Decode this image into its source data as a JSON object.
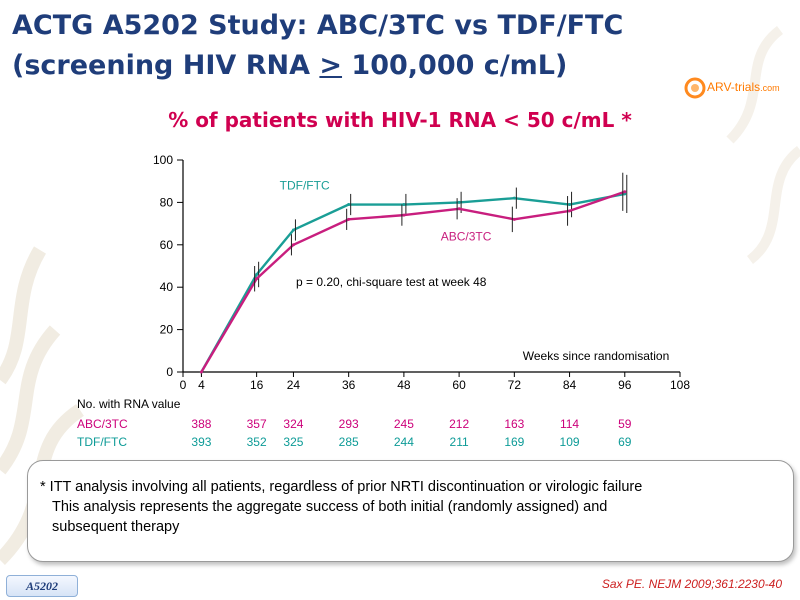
{
  "header": {
    "title_line1": "ACTG A5202 Study: ABC/3TC vs TDF/FTC",
    "title_line2_prefix": "(screening HIV RNA ",
    "title_line2_symbol": ">",
    "title_line2_suffix": " 100,000 c/mL)",
    "logo_main": "ARV-trials",
    "logo_tld": ".com"
  },
  "chart_data": {
    "type": "line",
    "title": "% of patients with HIV-1 RNA < 50 c/mL *",
    "xlabel": "Weeks since randomisation",
    "ylabel": "",
    "xlim": [
      0,
      108
    ],
    "ylim": [
      0,
      100
    ],
    "x_ticks": [
      0,
      4,
      16,
      24,
      36,
      48,
      60,
      72,
      84,
      96,
      108
    ],
    "y_ticks": [
      0,
      20,
      40,
      60,
      80,
      100
    ],
    "grid": false,
    "annotation": "p = 0.20, chi-square test at week 48",
    "series": [
      {
        "name": "TDF/FTC",
        "color": "#1a9e96",
        "x": [
          4,
          16,
          24,
          36,
          48,
          60,
          72,
          84,
          96
        ],
        "y": [
          0,
          46,
          67,
          79,
          79,
          80,
          82,
          79,
          84
        ],
        "error": [
          0,
          6,
          5,
          5,
          5,
          5,
          5,
          6,
          9
        ]
      },
      {
        "name": "ABC/3TC",
        "color": "#c81e7e",
        "x": [
          4,
          16,
          24,
          36,
          48,
          60,
          72,
          84,
          96
        ],
        "y": [
          0,
          44,
          60,
          72,
          74,
          77,
          72,
          76,
          85
        ],
        "error": [
          0,
          6,
          5,
          5,
          5,
          5,
          6,
          7,
          9
        ]
      }
    ]
  },
  "table": {
    "header": "No. with RNA value",
    "rows": [
      {
        "label": "ABC/3TC",
        "values": [
          "388",
          "357",
          "324",
          "293",
          "245",
          "212",
          "163",
          "114",
          "59"
        ]
      },
      {
        "label": "TDF/FTC",
        "values": [
          "393",
          "352",
          "325",
          "285",
          "244",
          "211",
          "169",
          "109",
          "69"
        ]
      }
    ]
  },
  "notes": {
    "line1": "* ITT analysis involving all patients, regardless of prior NRTI discontinuation or virologic failure",
    "line2": "This analysis represents the aggregate success of both initial (randomly assigned) and",
    "line3": "subsequent therapy"
  },
  "footer": {
    "badge": "A5202",
    "citation": "Sax PE. NEJM 2009;361:2230-40"
  }
}
